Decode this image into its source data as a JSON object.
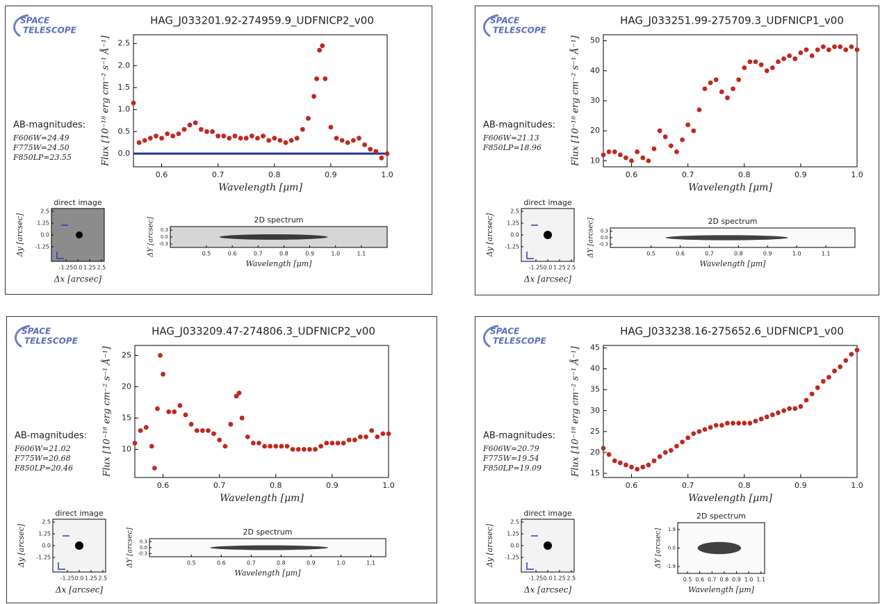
{
  "chart_data": [
    {
      "type": "scatter",
      "logo": [
        "SPACE",
        "TELESCOPE"
      ],
      "title": "HAG_J033201.92-274959.9_UDFNICP2_v00",
      "x_label": "Wavelength [μm]",
      "y_label": "Flux [10⁻¹⁸ erg cm⁻² s⁻¹ Å⁻¹]",
      "magnitudes_title": "AB-magnitudes:",
      "magnitudes": [
        "F606W=24.49",
        "F775W=24.50",
        "F850LP=23.55"
      ],
      "color": "#c0281e",
      "hline": 0,
      "hline_color": "#22309a",
      "x": [
        0.55,
        0.56,
        0.57,
        0.58,
        0.59,
        0.6,
        0.61,
        0.62,
        0.63,
        0.64,
        0.65,
        0.66,
        0.67,
        0.68,
        0.69,
        0.7,
        0.71,
        0.72,
        0.73,
        0.74,
        0.75,
        0.76,
        0.77,
        0.78,
        0.79,
        0.8,
        0.81,
        0.82,
        0.83,
        0.84,
        0.85,
        0.86,
        0.87,
        0.875,
        0.88,
        0.885,
        0.89,
        0.9,
        0.91,
        0.92,
        0.93,
        0.94,
        0.95,
        0.96,
        0.97,
        0.98,
        0.99,
        1.0
      ],
      "values": [
        1.15,
        0.25,
        0.3,
        0.35,
        0.4,
        0.35,
        0.45,
        0.4,
        0.45,
        0.55,
        0.65,
        0.7,
        0.55,
        0.5,
        0.5,
        0.4,
        0.4,
        0.35,
        0.4,
        0.35,
        0.35,
        0.4,
        0.35,
        0.4,
        0.3,
        0.35,
        0.3,
        0.25,
        0.3,
        0.35,
        0.55,
        0.8,
        1.3,
        1.7,
        2.35,
        2.45,
        1.7,
        0.6,
        0.35,
        0.3,
        0.25,
        0.3,
        0.35,
        0.2,
        0.1,
        0.05,
        -0.1,
        0.0
      ],
      "xlim": [
        0.55,
        1.0
      ],
      "xticks": [
        0.6,
        0.7,
        0.8,
        0.9,
        {
          "value": 1,
          "label": "1.0"
        }
      ],
      "ylim": [
        -0.3,
        2.7
      ],
      "yticks": [
        {
          "value": 0,
          "label": "0.0"
        },
        0.5,
        {
          "value": 1,
          "label": "1.0"
        },
        1.5,
        {
          "value": 2,
          "label": "2.0"
        },
        2.5
      ],
      "direct_image": {
        "title": "direct image",
        "x_label": "Δx [arcsec]",
        "y_label": "Δy [arcsec]",
        "lim": [
          -2.8,
          2.8
        ],
        "xticks": [
          -1.25,
          {
            "value": 0,
            "label": "0.0"
          },
          1.25,
          2.5
        ],
        "yticks": [
          -1.25,
          {
            "value": 0,
            "label": "0.0"
          },
          1.25,
          2.5
        ]
      },
      "spectrum_2d": {
        "title": "2D spectrum",
        "x_label": "Wavelength [μm]",
        "y_label": "ΔY [arcsec]",
        "xlim": [
          0.36,
          1.2
        ],
        "ylim": [
          -0.45,
          0.45
        ],
        "xticks": [
          0.5,
          0.6,
          0.7,
          0.8,
          0.9,
          {
            "value": 1,
            "label": "1.0"
          },
          1.1
        ],
        "yticks": [
          -0.3,
          {
            "value": 0,
            "label": "0.0"
          },
          0.3
        ]
      }
    },
    {
      "type": "scatter",
      "logo": [
        "SPACE",
        "TELESCOPE"
      ],
      "title": "HAG_J033251.99-275709.3_UDFNICP1_v00",
      "x_label": "Wavelength [μm]",
      "y_label": "Flux [10⁻¹⁸ erg cm⁻² s⁻¹ Å⁻¹]",
      "magnitudes_title": "AB-magnitudes:",
      "magnitudes": [
        "F606W=21.13",
        "F850LP=18.96"
      ],
      "color": "#c0281e",
      "x": [
        0.55,
        0.56,
        0.57,
        0.58,
        0.59,
        0.6,
        0.61,
        0.62,
        0.63,
        0.64,
        0.65,
        0.66,
        0.67,
        0.68,
        0.69,
        0.7,
        0.71,
        0.72,
        0.73,
        0.74,
        0.75,
        0.76,
        0.77,
        0.78,
        0.79,
        0.8,
        0.81,
        0.82,
        0.83,
        0.84,
        0.85,
        0.86,
        0.87,
        0.88,
        0.89,
        0.9,
        0.91,
        0.92,
        0.93,
        0.94,
        0.95,
        0.96,
        0.97,
        0.98,
        0.99,
        1.0
      ],
      "values": [
        12,
        13,
        13,
        12,
        11,
        10,
        13,
        11,
        10,
        14,
        20,
        18,
        15,
        13,
        17,
        22,
        20,
        27,
        34,
        36,
        37,
        33,
        31,
        34,
        37,
        41,
        43,
        43,
        42,
        40,
        41,
        43,
        44,
        45,
        44,
        46,
        47,
        45,
        47,
        48,
        47,
        48,
        48,
        47,
        48,
        47
      ],
      "xlim": [
        0.55,
        1.0
      ],
      "xticks": [
        0.6,
        0.7,
        0.8,
        0.9,
        {
          "value": 1,
          "label": "1.0"
        }
      ],
      "ylim": [
        8,
        52
      ],
      "yticks": [
        10,
        20,
        30,
        40,
        50
      ],
      "direct_image": {
        "title": "direct image",
        "x_label": "Δx [arcsec]",
        "y_label": "Δy [arcsec]",
        "lim": [
          -2.8,
          2.8
        ],
        "xticks": [
          -1.25,
          {
            "value": 0,
            "label": "0.0"
          },
          1.25,
          2.5
        ],
        "yticks": [
          -1.25,
          {
            "value": 0,
            "label": "0.0"
          },
          1.25,
          2.5
        ]
      },
      "spectrum_2d": {
        "title": "2D spectrum",
        "x_label": "Wavelength [μm]",
        "y_label": "ΔY [arcsec]",
        "xlim": [
          0.36,
          1.2
        ],
        "ylim": [
          -0.45,
          0.45
        ],
        "xticks": [
          0.5,
          0.6,
          0.7,
          0.8,
          0.9,
          {
            "value": 1,
            "label": "1.0"
          },
          1.1
        ],
        "yticks": [
          -0.3,
          {
            "value": 0,
            "label": "0.0"
          },
          0.3
        ]
      }
    },
    {
      "type": "scatter",
      "logo": [
        "SPACE",
        "TELESCOPE"
      ],
      "title": "HAG_J033209.47-274806.3_UDFNICP2_v00",
      "x_label": "Wavelength [μm]",
      "y_label": "Flux [10⁻¹⁸ erg cm⁻² s⁻¹ Å⁻¹]",
      "magnitudes_title": "AB-magnitudes:",
      "magnitudes": [
        "F606W=21.02",
        "F775W=20.68",
        "F850LP=20.46"
      ],
      "color": "#c0281e",
      "x": [
        0.55,
        0.56,
        0.57,
        0.58,
        0.585,
        0.59,
        0.595,
        0.6,
        0.61,
        0.62,
        0.63,
        0.64,
        0.65,
        0.66,
        0.67,
        0.68,
        0.69,
        0.7,
        0.71,
        0.72,
        0.73,
        0.735,
        0.74,
        0.75,
        0.76,
        0.77,
        0.78,
        0.79,
        0.8,
        0.81,
        0.82,
        0.83,
        0.84,
        0.85,
        0.86,
        0.87,
        0.88,
        0.89,
        0.9,
        0.91,
        0.92,
        0.93,
        0.94,
        0.95,
        0.96,
        0.97,
        0.98,
        0.99,
        1.0
      ],
      "values": [
        11,
        13,
        13.5,
        10.5,
        7,
        16.5,
        25,
        22,
        16,
        16,
        17,
        15.5,
        14,
        13,
        13,
        13,
        12.5,
        11.5,
        10.5,
        14,
        18.5,
        19,
        15,
        12,
        11,
        11,
        10.5,
        10.5,
        10.5,
        10.5,
        10.5,
        10,
        10,
        10,
        10,
        10,
        10.5,
        11,
        11,
        11,
        11,
        11.5,
        11.5,
        12,
        12,
        13,
        12,
        12.5,
        12.5
      ],
      "xlim": [
        0.55,
        1.0
      ],
      "xticks": [
        0.6,
        0.7,
        0.8,
        0.9,
        {
          "value": 1,
          "label": "1.0"
        }
      ],
      "ylim": [
        5.5,
        26.6
      ],
      "yticks": [
        10,
        15,
        20,
        25
      ],
      "direct_image": {
        "title": "direct image",
        "x_label": "Δx [arcsec]",
        "y_label": "Δy [arcsec]",
        "lim": [
          -2.8,
          2.8
        ],
        "xticks": [
          -1.25,
          {
            "value": 0,
            "label": "0.0"
          },
          1.25,
          2.5
        ],
        "yticks": [
          -1.25,
          {
            "value": 0,
            "label": "0.0"
          },
          1.25,
          2.5
        ]
      },
      "spectrum_2d": {
        "title": "2D spectrum",
        "x_label": "Wavelength [μm]",
        "y_label": "ΔY [arcsec]",
        "xlim": [
          0.36,
          1.15
        ],
        "ylim": [
          -0.45,
          0.45
        ],
        "xticks": [
          0.5,
          0.6,
          0.7,
          0.8,
          0.9,
          {
            "value": 1,
            "label": "1.0"
          },
          1.1
        ],
        "yticks": [
          -0.3,
          {
            "value": 0,
            "label": "0.0"
          },
          0.3
        ]
      }
    },
    {
      "type": "scatter",
      "logo": [
        "SPACE",
        "TELESCOPE"
      ],
      "title": "HAG_J033238.16-275652.6_UDFNICP1_v00",
      "x_label": "Wavelength [μm]",
      "y_label": "Flux [10⁻¹⁸ erg cm⁻² s⁻¹ Å⁻¹]",
      "magnitudes_title": "AB-magnitudes:",
      "magnitudes": [
        "F606W=20.79",
        "F775W=19.54",
        "F850LP=19.09"
      ],
      "color": "#c0281e",
      "x": [
        0.55,
        0.56,
        0.57,
        0.58,
        0.59,
        0.6,
        0.61,
        0.62,
        0.63,
        0.64,
        0.65,
        0.66,
        0.67,
        0.68,
        0.69,
        0.7,
        0.71,
        0.72,
        0.73,
        0.74,
        0.75,
        0.76,
        0.77,
        0.78,
        0.79,
        0.8,
        0.81,
        0.82,
        0.83,
        0.84,
        0.85,
        0.86,
        0.87,
        0.88,
        0.89,
        0.9,
        0.91,
        0.92,
        0.93,
        0.94,
        0.95,
        0.96,
        0.97,
        0.98,
        0.99,
        1.0
      ],
      "values": [
        21,
        19.5,
        18,
        17.5,
        17,
        16.5,
        16,
        16.5,
        17,
        18,
        19,
        20,
        20.5,
        21.5,
        22.5,
        23.5,
        24.5,
        25,
        25.5,
        26,
        26.5,
        26.5,
        27,
        27,
        27,
        27,
        27,
        27.5,
        28,
        28.5,
        29,
        29.5,
        30,
        30.5,
        30.5,
        31,
        32.5,
        34,
        35.5,
        37,
        38,
        39.5,
        40.5,
        42,
        43.5,
        44.5
      ],
      "xlim": [
        0.55,
        1.0
      ],
      "xticks": [
        0.6,
        0.7,
        0.8,
        0.9,
        {
          "value": 1,
          "label": "1.0"
        }
      ],
      "ylim": [
        14,
        45.6
      ],
      "yticks": [
        15,
        20,
        25,
        30,
        35,
        40,
        45
      ],
      "direct_image": {
        "title": "direct image",
        "x_label": "Δx [arcsec]",
        "y_label": "Δy [arcsec]",
        "lim": [
          -2.8,
          2.8
        ],
        "xticks": [
          -1.25,
          {
            "value": 0,
            "label": "0.0"
          },
          1.25,
          2.5
        ],
        "yticks": [
          -1.25,
          {
            "value": 0,
            "label": "0.0"
          },
          1.25,
          2.5
        ]
      },
      "spectrum_2d": {
        "title": "2D spectrum",
        "x_label": "Wavelength [μm]",
        "y_label": "ΔY [arcsec]",
        "xlim": [
          0.42,
          1.13
        ],
        "ylim": [
          -2.6,
          2.6
        ],
        "xticks": [
          0.5,
          0.6,
          0.7,
          0.8,
          0.9,
          {
            "value": 1,
            "label": "1.0"
          },
          1.1
        ],
        "yticks": [
          -1.9,
          {
            "value": 0,
            "label": "0.0"
          },
          1.9
        ]
      }
    }
  ]
}
